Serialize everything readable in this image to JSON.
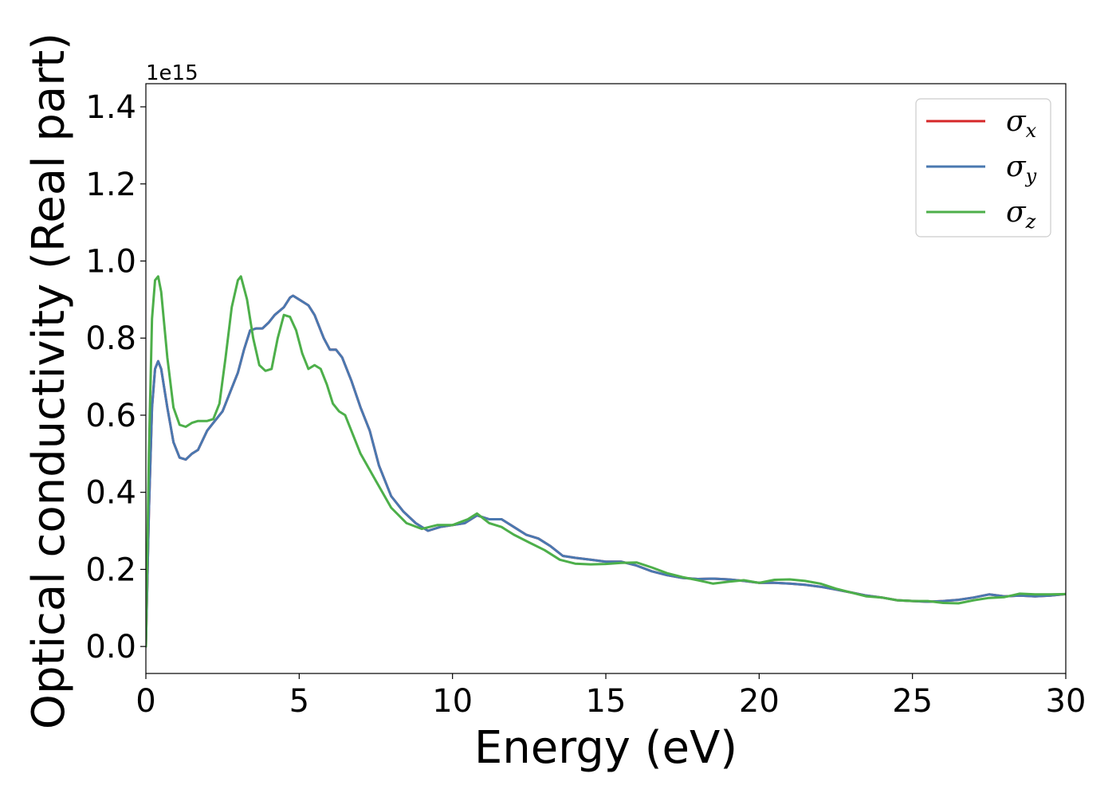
{
  "chart_data": {
    "type": "line",
    "title": "",
    "xlabel": "Energy (eV)",
    "ylabel": "Optical conductivity (Real part)",
    "y_offset_label": "1e15",
    "xlim": [
      0,
      30
    ],
    "ylim": [
      -0.07,
      1.46
    ],
    "xticks": [
      0,
      5,
      10,
      15,
      20,
      25,
      30
    ],
    "xtick_labels": [
      "0",
      "5",
      "10",
      "15",
      "20",
      "25",
      "30"
    ],
    "yticks": [
      0.0,
      0.2,
      0.4,
      0.6,
      0.8,
      1.0,
      1.2,
      1.4
    ],
    "ytick_labels": [
      "0.0",
      "0.2",
      "0.4",
      "0.6",
      "0.8",
      "1.0",
      "1.2",
      "1.4"
    ],
    "grid": false,
    "legend_position": "top-right",
    "series": [
      {
        "name": "σx",
        "legend_base": "σ",
        "legend_sub": "x",
        "color": "#d62728",
        "x": [
          0,
          0.1,
          0.2,
          0.3,
          0.4,
          0.5,
          0.7,
          0.9,
          1.1,
          1.3,
          1.5,
          1.7,
          2.0,
          2.2,
          2.5,
          2.8,
          3.0,
          3.2,
          3.4,
          3.6,
          3.8,
          4.0,
          4.2,
          4.5,
          4.7,
          4.8,
          5.0,
          5.3,
          5.5,
          5.8,
          6.0,
          6.2,
          6.4,
          6.7,
          7.0,
          7.3,
          7.6,
          8.0,
          8.4,
          8.8,
          9.2,
          9.6,
          10.0,
          10.4,
          10.8,
          11.2,
          11.6,
          12.0,
          12.4,
          12.8,
          13.2,
          13.6,
          14.0,
          14.5,
          15.0,
          15.5,
          16.0,
          16.5,
          17.0,
          17.5,
          18.0,
          18.5,
          19.0,
          19.5,
          20.0,
          20.5,
          21.0,
          21.5,
          22.0,
          22.5,
          23.0,
          23.5,
          24.0,
          24.5,
          25.0,
          25.5,
          26.0,
          26.5,
          27.0,
          27.5,
          28.0,
          28.5,
          29.0,
          29.5,
          30.0
        ],
        "y": [
          0.0,
          0.35,
          0.62,
          0.72,
          0.74,
          0.72,
          0.62,
          0.53,
          0.49,
          0.485,
          0.5,
          0.51,
          0.56,
          0.58,
          0.61,
          0.67,
          0.71,
          0.77,
          0.82,
          0.825,
          0.825,
          0.84,
          0.86,
          0.88,
          0.905,
          0.91,
          0.9,
          0.885,
          0.86,
          0.8,
          0.77,
          0.77,
          0.75,
          0.69,
          0.62,
          0.56,
          0.47,
          0.39,
          0.35,
          0.32,
          0.3,
          0.31,
          0.315,
          0.32,
          0.34,
          0.33,
          0.33,
          0.31,
          0.29,
          0.28,
          0.26,
          0.235,
          0.23,
          0.225,
          0.22,
          0.22,
          0.21,
          0.195,
          0.185,
          0.178,
          0.175,
          0.176,
          0.174,
          0.17,
          0.165,
          0.165,
          0.163,
          0.16,
          0.155,
          0.148,
          0.14,
          0.132,
          0.127,
          0.12,
          0.118,
          0.116,
          0.118,
          0.121,
          0.127,
          0.135,
          0.13,
          0.132,
          0.13,
          0.132,
          0.136
        ]
      },
      {
        "name": "σy",
        "legend_base": "σ",
        "legend_sub": "y",
        "color": "#4a78b0",
        "x": [
          0,
          0.1,
          0.2,
          0.3,
          0.4,
          0.5,
          0.7,
          0.9,
          1.1,
          1.3,
          1.5,
          1.7,
          2.0,
          2.2,
          2.5,
          2.8,
          3.0,
          3.2,
          3.4,
          3.6,
          3.8,
          4.0,
          4.2,
          4.5,
          4.7,
          4.8,
          5.0,
          5.3,
          5.5,
          5.8,
          6.0,
          6.2,
          6.4,
          6.7,
          7.0,
          7.3,
          7.6,
          8.0,
          8.4,
          8.8,
          9.2,
          9.6,
          10.0,
          10.4,
          10.8,
          11.2,
          11.6,
          12.0,
          12.4,
          12.8,
          13.2,
          13.6,
          14.0,
          14.5,
          15.0,
          15.5,
          16.0,
          16.5,
          17.0,
          17.5,
          18.0,
          18.5,
          19.0,
          19.5,
          20.0,
          20.5,
          21.0,
          21.5,
          22.0,
          22.5,
          23.0,
          23.5,
          24.0,
          24.5,
          25.0,
          25.5,
          26.0,
          26.5,
          27.0,
          27.5,
          28.0,
          28.5,
          29.0,
          29.5,
          30.0
        ],
        "y": [
          0.0,
          0.35,
          0.62,
          0.72,
          0.74,
          0.72,
          0.62,
          0.53,
          0.49,
          0.485,
          0.5,
          0.51,
          0.56,
          0.58,
          0.61,
          0.67,
          0.71,
          0.77,
          0.82,
          0.825,
          0.825,
          0.84,
          0.86,
          0.88,
          0.905,
          0.91,
          0.9,
          0.885,
          0.86,
          0.8,
          0.77,
          0.77,
          0.75,
          0.69,
          0.62,
          0.56,
          0.47,
          0.39,
          0.35,
          0.32,
          0.3,
          0.31,
          0.315,
          0.32,
          0.34,
          0.33,
          0.33,
          0.31,
          0.29,
          0.28,
          0.26,
          0.235,
          0.23,
          0.225,
          0.22,
          0.22,
          0.21,
          0.195,
          0.185,
          0.178,
          0.175,
          0.176,
          0.174,
          0.17,
          0.165,
          0.165,
          0.163,
          0.16,
          0.155,
          0.148,
          0.14,
          0.132,
          0.127,
          0.12,
          0.118,
          0.116,
          0.118,
          0.121,
          0.127,
          0.135,
          0.13,
          0.132,
          0.13,
          0.132,
          0.136
        ]
      },
      {
        "name": "σz",
        "legend_base": "σ",
        "legend_sub": "z",
        "color": "#4daf4a",
        "x": [
          0,
          0.1,
          0.2,
          0.3,
          0.4,
          0.5,
          0.7,
          0.9,
          1.1,
          1.3,
          1.5,
          1.7,
          2.0,
          2.2,
          2.4,
          2.6,
          2.8,
          3.0,
          3.1,
          3.3,
          3.5,
          3.7,
          3.9,
          4.1,
          4.3,
          4.5,
          4.7,
          4.9,
          5.1,
          5.3,
          5.5,
          5.7,
          5.9,
          6.1,
          6.3,
          6.5,
          7.0,
          7.5,
          8.0,
          8.5,
          9.0,
          9.5,
          10.0,
          10.5,
          10.8,
          11.2,
          11.6,
          12.0,
          12.5,
          13.0,
          13.5,
          14.0,
          14.5,
          15.0,
          15.5,
          16.0,
          16.5,
          17.0,
          17.5,
          18.0,
          18.5,
          19.0,
          19.5,
          20.0,
          20.5,
          21.0,
          21.5,
          22.0,
          22.5,
          23.0,
          23.5,
          24.0,
          24.5,
          25.0,
          25.5,
          26.0,
          26.5,
          27.0,
          27.5,
          28.0,
          28.5,
          29.0,
          29.5,
          30.0
        ],
        "y": [
          0.0,
          0.5,
          0.85,
          0.95,
          0.96,
          0.92,
          0.75,
          0.62,
          0.575,
          0.57,
          0.58,
          0.585,
          0.585,
          0.59,
          0.63,
          0.75,
          0.88,
          0.95,
          0.96,
          0.9,
          0.8,
          0.73,
          0.715,
          0.72,
          0.8,
          0.86,
          0.855,
          0.82,
          0.76,
          0.72,
          0.73,
          0.72,
          0.68,
          0.63,
          0.61,
          0.6,
          0.5,
          0.43,
          0.36,
          0.32,
          0.305,
          0.315,
          0.315,
          0.33,
          0.345,
          0.32,
          0.31,
          0.29,
          0.27,
          0.25,
          0.225,
          0.215,
          0.213,
          0.214,
          0.217,
          0.218,
          0.205,
          0.19,
          0.18,
          0.172,
          0.163,
          0.168,
          0.172,
          0.165,
          0.173,
          0.174,
          0.17,
          0.163,
          0.15,
          0.14,
          0.13,
          0.127,
          0.12,
          0.118,
          0.118,
          0.113,
          0.112,
          0.12,
          0.126,
          0.128,
          0.137,
          0.135,
          0.135,
          0.136
        ]
      }
    ]
  }
}
